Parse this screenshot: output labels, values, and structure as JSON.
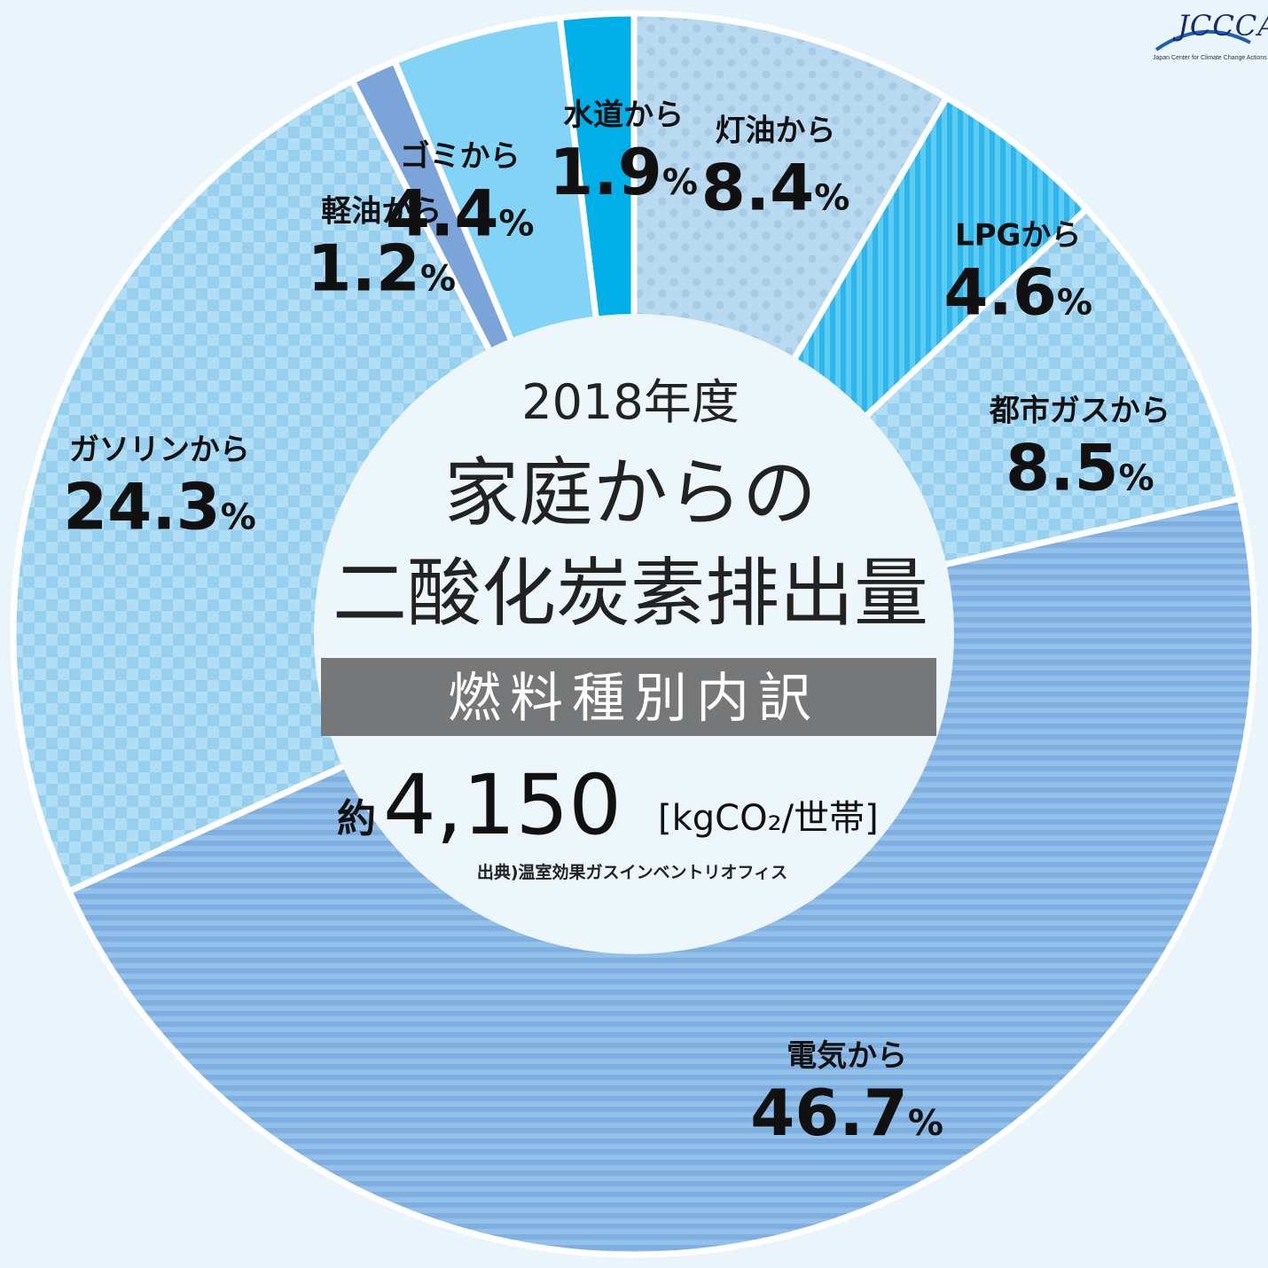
{
  "logo": {
    "text": "JCCCA",
    "subtitle": "Japan Center for Climate Change Actions"
  },
  "center": {
    "year": "2018年度",
    "title_line1": "家庭からの",
    "title_line2": "二酸化炭素排出量",
    "band": "燃料種別内訳",
    "total_prefix": "約",
    "total_value": "4,150",
    "total_unit": "[kgCO₂/世帯]",
    "source": "出典)温室効果ガスインベントリオフィス"
  },
  "colors": {
    "background": "#eaf5fb",
    "center": "#ecf6fb",
    "band": "#767779",
    "label": "#111111"
  },
  "chart_data": {
    "type": "pie",
    "variant": "donut",
    "start": "12 o'clock, clockwise",
    "slices": [
      {
        "label": "灯油から",
        "value": 8.4,
        "percent_text": "8.4",
        "unit": "%",
        "color": "#b8d9ef",
        "pattern": "dots"
      },
      {
        "label": "LPGから",
        "value": 4.6,
        "percent_text": "4.6",
        "unit": "%",
        "color": "#2eb5ec",
        "pattern": "vertical-stripes"
      },
      {
        "label": "都市ガスから",
        "value": 8.5,
        "percent_text": "8.5",
        "unit": "%",
        "color": "#a6d8f2",
        "pattern": "checker"
      },
      {
        "label": "電気から",
        "value": 46.7,
        "percent_text": "46.7",
        "unit": "%",
        "color": "#86b6e3",
        "pattern": "horizontal-stripes"
      },
      {
        "label": "ガソリンから",
        "value": 24.3,
        "percent_text": "24.3",
        "unit": "%",
        "color": "#a6d8f2",
        "pattern": "checker"
      },
      {
        "label": "軽油から",
        "value": 1.2,
        "percent_text": "1.2",
        "unit": "%",
        "color": "#7ba4d8",
        "pattern": "solid"
      },
      {
        "label": "ゴミから",
        "value": 4.4,
        "percent_text": "4.4",
        "unit": "%",
        "color": "#82d3f5",
        "pattern": "solid"
      },
      {
        "label": "水道から",
        "value": 1.9,
        "percent_text": "1.9",
        "unit": "%",
        "color": "#00aee8",
        "pattern": "solid"
      }
    ]
  }
}
